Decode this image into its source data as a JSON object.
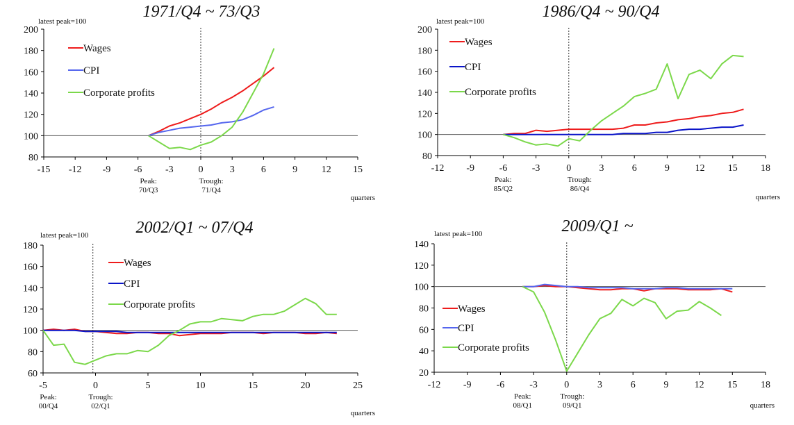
{
  "colors": {
    "wages": "#ee1c1c",
    "cpi_dark": "#0a14c8",
    "cpi_light": "#5566ee",
    "profits": "#7bd84a"
  },
  "axis_unit": "quarters",
  "index_note": "latest peak=100",
  "chart_data": [
    {
      "type": "line",
      "title": "1971/Q4 ~ 73/Q3",
      "xlim": [
        -15,
        15
      ],
      "xticks": [
        -15,
        -12,
        -9,
        -6,
        -3,
        0,
        3,
        6,
        9,
        12,
        15
      ],
      "ylim": [
        80,
        200
      ],
      "yticks": [
        80,
        100,
        120,
        140,
        160,
        180,
        200
      ],
      "baseline": 100,
      "trough_x": 0,
      "xlabel": "quarters",
      "note": "latest peak=100",
      "peak_label": [
        "Peak:",
        "70/Q3"
      ],
      "peak_x": -5,
      "trough_label": [
        "Trough:",
        "71/Q4"
      ],
      "trough_label_x": 1,
      "series": [
        {
          "name": "Wages",
          "color": "#ee1c1c",
          "x": [
            -5,
            -4,
            -3,
            -2,
            -1,
            0,
            1,
            2,
            3,
            4,
            5,
            6,
            7
          ],
          "values": [
            100,
            104,
            109,
            112,
            116,
            120,
            125,
            131,
            136,
            142,
            149,
            156,
            164
          ]
        },
        {
          "name": "CPI",
          "color": "#5566ee",
          "x": [
            -5,
            -4,
            -3,
            -2,
            -1,
            0,
            1,
            2,
            3,
            4,
            5,
            6,
            7
          ],
          "values": [
            100,
            103,
            105,
            107,
            108,
            109,
            110,
            112,
            113,
            115,
            119,
            124,
            127
          ]
        },
        {
          "name": "Corporate profits",
          "color": "#7bd84a",
          "x": [
            -5,
            -4,
            -3,
            -2,
            -1,
            0,
            1,
            2,
            3,
            4,
            5,
            6,
            7
          ],
          "values": [
            100,
            94,
            88,
            89,
            87,
            91,
            94,
            100,
            108,
            122,
            140,
            158,
            182
          ]
        }
      ]
    },
    {
      "type": "line",
      "title": "1986/Q4 ~ 90/Q4",
      "xlim": [
        -12,
        18
      ],
      "xticks": [
        -12,
        -9,
        -6,
        -3,
        0,
        3,
        6,
        9,
        12,
        15,
        18
      ],
      "ylim": [
        80,
        200
      ],
      "yticks": [
        80,
        100,
        120,
        140,
        160,
        180,
        200
      ],
      "baseline": 100,
      "trough_x": 0,
      "xlabel": "quarters",
      "note": "latest peak=100",
      "peak_label": [
        "Peak:",
        "85/Q2"
      ],
      "peak_x": -6,
      "trough_label": [
        "Trough:",
        "86/Q4"
      ],
      "trough_label_x": 1,
      "series": [
        {
          "name": "Wages",
          "color": "#ee1c1c",
          "x": [
            -6,
            -5,
            -4,
            -3,
            -2,
            -1,
            0,
            1,
            2,
            3,
            4,
            5,
            6,
            7,
            8,
            9,
            10,
            11,
            12,
            13,
            14,
            15,
            16
          ],
          "values": [
            100,
            101,
            101,
            104,
            103,
            104,
            105,
            105,
            105,
            105,
            105,
            106,
            109,
            109,
            111,
            112,
            114,
            115,
            117,
            118,
            120,
            121,
            124
          ]
        },
        {
          "name": "CPI",
          "color": "#0a14c8",
          "x": [
            -6,
            -5,
            -4,
            -3,
            -2,
            -1,
            0,
            1,
            2,
            3,
            4,
            5,
            6,
            7,
            8,
            9,
            10,
            11,
            12,
            13,
            14,
            15,
            16
          ],
          "values": [
            100,
            100,
            100,
            100,
            100,
            100,
            100,
            100,
            100,
            100,
            100,
            101,
            101,
            101,
            102,
            102,
            104,
            105,
            105,
            106,
            107,
            107,
            109
          ]
        },
        {
          "name": "Corporate profits",
          "color": "#7bd84a",
          "x": [
            -6,
            -5,
            -4,
            -3,
            -2,
            -1,
            0,
            1,
            2,
            3,
            4,
            5,
            6,
            7,
            8,
            9,
            10,
            11,
            12,
            13,
            14,
            15,
            16
          ],
          "values": [
            100,
            97,
            93,
            90,
            91,
            89,
            96,
            94,
            104,
            113,
            120,
            127,
            136,
            139,
            143,
            167,
            134,
            157,
            161,
            153,
            167,
            175,
            174
          ]
        }
      ]
    },
    {
      "type": "line",
      "title": "2002/Q1 ~ 07/Q4",
      "xlim": [
        -5,
        25
      ],
      "xticks": [
        -5,
        0,
        5,
        10,
        15,
        20,
        25
      ],
      "ylim": [
        60,
        180
      ],
      "yticks": [
        60,
        80,
        100,
        120,
        140,
        160,
        180
      ],
      "baseline": 100,
      "trough_x": -0.25,
      "xlabel": "quarters",
      "note": "latest peak=100",
      "peak_label": [
        "Peak:",
        "00/Q4"
      ],
      "peak_x": -4.5,
      "trough_label": [
        "Trough:",
        "02/Q1"
      ],
      "trough_label_x": 0.5,
      "series": [
        {
          "name": "Wages",
          "color": "#ee1c1c",
          "x": [
            -5,
            -4,
            -3,
            -2,
            -1,
            0,
            1,
            2,
            3,
            4,
            5,
            6,
            7,
            8,
            9,
            10,
            11,
            12,
            13,
            14,
            15,
            16,
            17,
            18,
            19,
            20,
            21,
            22,
            23
          ],
          "values": [
            100,
            101,
            100,
            101,
            99,
            99,
            98,
            97,
            97,
            98,
            98,
            97,
            97,
            95,
            96,
            97,
            97,
            97,
            98,
            98,
            98,
            97,
            98,
            98,
            98,
            97,
            97,
            98,
            97
          ]
        },
        {
          "name": "CPI",
          "color": "#0a14c8",
          "x": [
            -5,
            -4,
            -3,
            -2,
            -1,
            0,
            1,
            2,
            3,
            4,
            5,
            6,
            7,
            8,
            9,
            10,
            11,
            12,
            13,
            14,
            15,
            16,
            17,
            18,
            19,
            20,
            21,
            22,
            23
          ],
          "values": [
            100,
            100,
            100,
            100,
            99,
            99,
            99,
            99,
            98,
            98,
            98,
            98,
            98,
            98,
            98,
            98,
            98,
            98,
            98,
            98,
            98,
            98,
            98,
            98,
            98,
            98,
            98,
            98,
            98
          ]
        },
        {
          "name": "Corporate profits",
          "color": "#7bd84a",
          "x": [
            -5,
            -4,
            -3,
            -2,
            -1,
            0,
            1,
            2,
            3,
            4,
            5,
            6,
            7,
            8,
            9,
            10,
            11,
            12,
            13,
            14,
            15,
            16,
            17,
            18,
            19,
            20,
            21,
            22,
            23
          ],
          "values": [
            100,
            86,
            87,
            70,
            68,
            72,
            76,
            78,
            78,
            81,
            80,
            86,
            95,
            100,
            106,
            108,
            108,
            111,
            110,
            109,
            113,
            115,
            115,
            118,
            124,
            130,
            125,
            115,
            115
          ]
        }
      ]
    },
    {
      "type": "line",
      "title": "2009/Q1 ~",
      "xlim": [
        -12,
        18
      ],
      "xticks": [
        -12,
        -9,
        -6,
        -3,
        0,
        3,
        6,
        9,
        12,
        15,
        18
      ],
      "ylim": [
        20,
        140
      ],
      "yticks": [
        20,
        40,
        60,
        80,
        100,
        120,
        140
      ],
      "baseline": 100,
      "trough_x": 0,
      "xlabel": "quarters",
      "note": "latest peak=100",
      "peak_label": [
        "Peak:",
        "08/Q1"
      ],
      "peak_x": -4,
      "trough_label": [
        "Trough:",
        "09/Q1"
      ],
      "trough_label_x": 0.5,
      "series": [
        {
          "name": "Wages",
          "color": "#ee1c1c",
          "x": [
            -4,
            -3,
            -2,
            -1,
            0,
            1,
            2,
            3,
            4,
            5,
            6,
            7,
            8,
            9,
            10,
            11,
            12,
            13,
            14,
            15
          ],
          "values": [
            100,
            100,
            101,
            100,
            100,
            99,
            98,
            97,
            97,
            98,
            98,
            96,
            98,
            98,
            98,
            97,
            97,
            97,
            98,
            95
          ]
        },
        {
          "name": "CPI",
          "color": "#5566ee",
          "x": [
            -4,
            -3,
            -2,
            -1,
            0,
            1,
            2,
            3,
            4,
            5,
            6,
            7,
            8,
            9,
            10,
            11,
            12,
            13,
            14,
            15
          ],
          "values": [
            100,
            100,
            102,
            101,
            100,
            100,
            99,
            99,
            99,
            99,
            98,
            98,
            98,
            99,
            99,
            98,
            98,
            98,
            98,
            98
          ]
        },
        {
          "name": "Corporate profits",
          "color": "#7bd84a",
          "x": [
            -4,
            -3,
            -2,
            -1,
            0,
            1,
            2,
            3,
            4,
            5,
            6,
            7,
            8,
            9,
            10,
            11,
            12,
            13,
            14
          ],
          "values": [
            100,
            95,
            76,
            50,
            21,
            38,
            55,
            70,
            75,
            88,
            82,
            89,
            85,
            70,
            77,
            78,
            86,
            80,
            73
          ]
        }
      ]
    }
  ]
}
